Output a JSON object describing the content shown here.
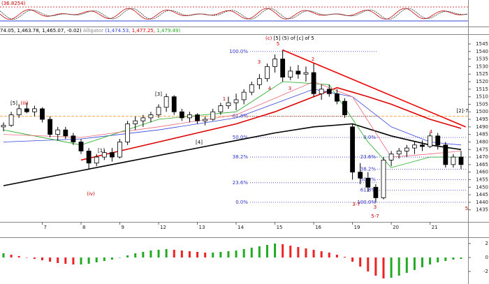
{
  "header": {
    "oscillator_value": "(36.8254)",
    "price_info": "74.05, 1,463.78, 1,465.07, -0.02)",
    "alligator_label": "Alligator",
    "jaw": "(1,474.53,",
    "teeth": "1,477.25,",
    "lips": "1,479.49)"
  },
  "chart_data": [
    {
      "type": "candlestick",
      "title_prefix": "(c)",
      "title": "[5] (5) of [c] of 5",
      "x": [
        0,
        1,
        2,
        3,
        4,
        5,
        6,
        7,
        8,
        9,
        10,
        11,
        12,
        13,
        14,
        15,
        16,
        17,
        18,
        19,
        20,
        21,
        22,
        23,
        24,
        25,
        26,
        27,
        28,
        29,
        30,
        31,
        32,
        33,
        34,
        35,
        36,
        37,
        38,
        39,
        40,
        41,
        42,
        43,
        44,
        45,
        46,
        47,
        48,
        49,
        50,
        51,
        52,
        53,
        54,
        55,
        56,
        57,
        58,
        59
      ],
      "open": [
        1490,
        1491,
        1498,
        1502,
        1500,
        1502,
        1495,
        1485,
        1488,
        1484,
        1480,
        1474,
        1466,
        1470,
        1473,
        1470,
        1480,
        1492,
        1494,
        1496,
        1498,
        1503,
        1510,
        1500,
        1496,
        1498,
        1494,
        1495,
        1500,
        1504,
        1506,
        1508,
        1513,
        1518,
        1522,
        1530,
        1535,
        1523,
        1527,
        1525,
        1526,
        1512,
        1515,
        1512,
        1507,
        1490,
        1460,
        1456,
        1450,
        1443,
        1468,
        1472,
        1474,
        1476,
        1478,
        1477,
        1484,
        1478,
        1465,
        1470
      ],
      "high": [
        1493,
        1500,
        1505,
        1506,
        1504,
        1503,
        1497,
        1490,
        1490,
        1486,
        1482,
        1476,
        1472,
        1475,
        1476,
        1482,
        1494,
        1497,
        1498,
        1500,
        1505,
        1512,
        1511,
        1502,
        1500,
        1499,
        1497,
        1502,
        1506,
        1510,
        1512,
        1515,
        1520,
        1525,
        1532,
        1538,
        1541,
        1530,
        1531,
        1530,
        1532,
        1518,
        1518,
        1515,
        1509,
        1492,
        1466,
        1460,
        1452,
        1470,
        1474,
        1476,
        1478,
        1480,
        1481,
        1486,
        1486,
        1480,
        1472,
        1474
      ],
      "low": [
        1487,
        1490,
        1496,
        1499,
        1497,
        1493,
        1483,
        1481,
        1482,
        1478,
        1472,
        1462,
        1464,
        1468,
        1467,
        1469,
        1478,
        1488,
        1490,
        1493,
        1496,
        1500,
        1498,
        1494,
        1493,
        1492,
        1491,
        1494,
        1498,
        1502,
        1501,
        1505,
        1511,
        1515,
        1520,
        1526,
        1520,
        1521,
        1522,
        1520,
        1510,
        1508,
        1510,
        1505,
        1496,
        1455,
        1452,
        1447,
        1440,
        1442,
        1464,
        1469,
        1470,
        1472,
        1474,
        1476,
        1475,
        1463,
        1463,
        1462
      ],
      "close": [
        1491,
        1498,
        1502,
        1500,
        1502,
        1495,
        1485,
        1488,
        1484,
        1480,
        1474,
        1466,
        1470,
        1473,
        1470,
        1480,
        1492,
        1494,
        1496,
        1498,
        1503,
        1510,
        1500,
        1496,
        1498,
        1494,
        1495,
        1500,
        1504,
        1506,
        1508,
        1513,
        1518,
        1522,
        1530,
        1535,
        1523,
        1527,
        1525,
        1526,
        1512,
        1515,
        1512,
        1507,
        1498,
        1460,
        1456,
        1450,
        1443,
        1468,
        1472,
        1474,
        1476,
        1478,
        1477,
        1484,
        1478,
        1465,
        1470,
        1465
      ],
      "up_color": "#ffffff",
      "down_color": "#000000",
      "xlim": [
        -0.45,
        59.9
      ],
      "ylim": [
        1427,
        1551
      ],
      "xticks": [
        {
          "value": 5,
          "label": "7"
        },
        {
          "value": 10,
          "label": "8"
        },
        {
          "value": 15,
          "label": "9"
        },
        {
          "value": 20,
          "label": "12"
        },
        {
          "value": 25,
          "label": "13"
        },
        {
          "value": 30,
          "label": "14"
        },
        {
          "value": 35,
          "label": "15"
        },
        {
          "value": 40,
          "label": "16"
        },
        {
          "value": 45,
          "label": "19"
        },
        {
          "value": 50,
          "label": "20"
        },
        {
          "value": 55,
          "label": "21"
        }
      ],
      "yticks": [
        1435,
        1440,
        1445,
        1450,
        1455,
        1460,
        1465,
        1470,
        1475,
        1480,
        1485,
        1490,
        1495,
        1500,
        1505,
        1510,
        1515,
        1520,
        1525,
        1530,
        1535,
        1540,
        1545
      ],
      "overlays": [
        {
          "color": "#000000",
          "width": 1.6,
          "x": [
            0,
            5,
            10,
            15,
            20,
            25,
            30,
            35,
            40,
            45,
            50,
            55,
            59
          ],
          "values": [
            1451,
            1456,
            1461,
            1466,
            1471,
            1476,
            1481,
            1486,
            1490,
            1492,
            1484,
            1478,
            1475
          ]
        },
        {
          "color": "#dd0000",
          "width": 1.6,
          "x": [
            10,
            15,
            20,
            25,
            30,
            35,
            40,
            43,
            47,
            50,
            55,
            59
          ],
          "values": [
            1468,
            1474,
            1480,
            1486,
            1492,
            1500,
            1510,
            1516,
            1510,
            1505,
            1495,
            1489
          ]
        },
        {
          "color": "#3344dd",
          "width": 0.8,
          "x": [
            0,
            10,
            20,
            30,
            40,
            45,
            50,
            55,
            59
          ],
          "values": [
            1480,
            1482,
            1488,
            1496,
            1515,
            1510,
            1490,
            1480,
            1478
          ]
        },
        {
          "color": "#22aa22",
          "width": 0.8,
          "x": [
            0,
            10,
            20,
            30,
            36,
            42,
            47,
            50,
            55,
            59
          ],
          "values": [
            1488,
            1478,
            1495,
            1500,
            1520,
            1518,
            1480,
            1463,
            1470,
            1470
          ]
        },
        {
          "color": "#ee6677",
          "width": 0.8,
          "x": [
            0,
            10,
            20,
            30,
            40,
            45,
            50,
            55,
            59
          ],
          "values": [
            1485,
            1483,
            1490,
            1498,
            1520,
            1510,
            1470,
            1472,
            1474
          ]
        }
      ],
      "trendline": {
        "color": "#ee0000",
        "x": [
          36,
          59.6
        ],
        "values": [
          1541,
          1490
        ]
      },
      "hlines": [
        {
          "value": 1497,
          "color": "#ff9933"
        }
      ],
      "fibonacci": [
        {
          "color": "#3333cc",
          "levels": [
            {
              "label": "100.0%",
              "value": 1540
            },
            {
              "label": "61.8%",
              "value": 1497
            },
            {
              "label": "50.0%",
              "value": 1483
            },
            {
              "label": "38.2%",
              "value": 1470
            },
            {
              "label": "23.6%",
              "value": 1453
            },
            {
              "label": "0.0%",
              "value": 1440
            }
          ]
        },
        {
          "color": "#3333cc",
          "levels": [
            {
              "label": "0.0%",
              "value": 1483
            },
            {
              "label": "23.6%",
              "value": 1470
            },
            {
              "label": "38.2%",
              "value": 1462
            },
            {
              "label": "50.0%",
              "value": 1455
            },
            {
              "label": "61.8%",
              "value": 1448
            },
            {
              "label": "100.0%",
              "value": 1440
            }
          ]
        }
      ],
      "annotations": [
        "[5]",
        "(iii)",
        "[1]",
        "(iv)",
        "[3]",
        "[4]",
        "1",
        "3",
        "4",
        "5",
        "3",
        "2",
        "3-7",
        "3",
        "5-7",
        "4",
        "5",
        "[2]-7"
      ]
    },
    {
      "type": "bar",
      "x": [
        0,
        1,
        2,
        3,
        4,
        5,
        6,
        7,
        8,
        9,
        10,
        11,
        12,
        13,
        14,
        15,
        16,
        17,
        18,
        19,
        20,
        21,
        22,
        23,
        24,
        25,
        26,
        27,
        28,
        29,
        30,
        31,
        32,
        33,
        34,
        35,
        36,
        37,
        38,
        39,
        40,
        41,
        42,
        43,
        44,
        45,
        46,
        47,
        48,
        49,
        50,
        51,
        52,
        53,
        54,
        55,
        56,
        57,
        58,
        59
      ],
      "values": [
        0.6,
        0.4,
        0.2,
        0,
        -0.2,
        -0.4,
        -0.6,
        -0.8,
        -0.9,
        -1,
        -1,
        -0.9,
        -0.7,
        -0.5,
        -0.3,
        0,
        0.3,
        0.6,
        0.8,
        1,
        1.1,
        1.2,
        1.1,
        1,
        0.9,
        0.8,
        0.7,
        0.7,
        0.8,
        0.9,
        1,
        1.2,
        1.4,
        1.6,
        1.8,
        2,
        1.9,
        1.7,
        1.5,
        1.3,
        1.1,
        0.9,
        0.7,
        0.4,
        0.1,
        -0.6,
        -1.3,
        -2,
        -2.6,
        -3,
        -2.9,
        -2.6,
        -2.2,
        -1.8,
        -1.4,
        -1,
        -0.7,
        -0.5,
        -0.3,
        -0.2
      ],
      "up_color": "#22aa22",
      "down_color": "#ee2222",
      "xlim": [
        -0.45,
        59.9
      ],
      "ylim": [
        -3.5,
        2.5
      ],
      "yticks": [
        2,
        0,
        -2
      ]
    }
  ]
}
